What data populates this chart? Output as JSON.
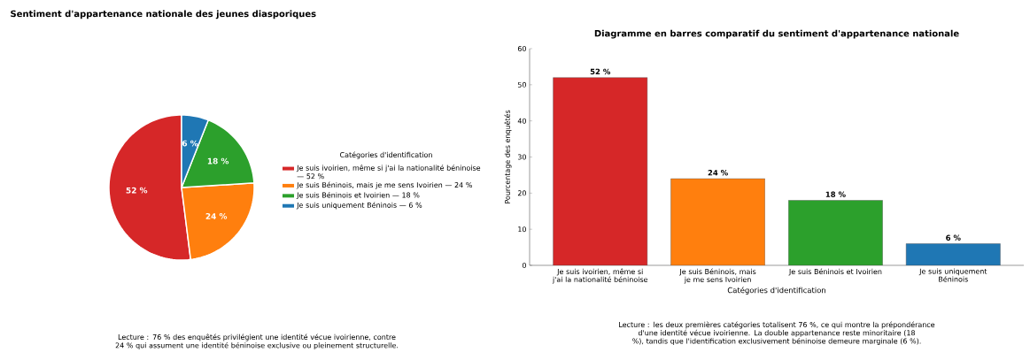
{
  "chart_data": [
    {
      "type": "pie",
      "title": "Sentiment d'appartenance nationale des jeunes diasporiques",
      "legend_title": "Catégories d'identification",
      "legend": "right",
      "categories": [
        "Je suis ivoirien, même si j'ai la nationalité béninoise — 52 %",
        "Je suis Béninois, mais je me sens Ivoirien — 24 %",
        "Je suis Béninois et Ivoirien — 18 %",
        "Je suis uniquement Béninois — 6 %"
      ],
      "values": [
        52,
        24,
        18,
        6
      ],
      "colors": [
        "#d62728",
        "#ff7f0e",
        "#2ca02c",
        "#1f77b4"
      ],
      "value_labels": [
        "52 %",
        "24 %",
        "18 %",
        "6 %"
      ],
      "annotations": [
        "Lecture : 76 % des enquêtés privilégient une identité vécue ivoirienne, contre 24 % qui assument une identité béninoise exclusive ou pleinement structurelle."
      ]
    },
    {
      "type": "bar",
      "title": "Diagramme en barres comparatif du sentiment d'appartenance nationale",
      "xlabel": "Catégories d'identification",
      "ylabel": "Pourcentage des enquêtés",
      "categories": [
        "Je suis ivoirien, même si j'ai la nationalité béninoise",
        "Je suis Béninois, mais je me sens Ivoirien",
        "Je suis Béninois et Ivoirien",
        "Je suis uniquement Béninois"
      ],
      "values": [
        52,
        24,
        18,
        6
      ],
      "colors": [
        "#d62728",
        "#ff7f0e",
        "#2ca02c",
        "#1f77b4"
      ],
      "value_labels": [
        "52 %",
        "24 %",
        "18 %",
        "6 %"
      ],
      "ylim": [
        0,
        60
      ],
      "yticks": [
        0,
        10,
        20,
        30,
        40,
        50,
        60
      ],
      "annotations": [
        "Lecture : les deux premières catégories totalisent 76 %, ce qui montre la prépondérance d'une identité vécue ivoirienne. La double appartenance reste minoritaire (18 %), tandis que l'identification exclusivement béninoise demeure marginale (6 %)."
      ]
    }
  ]
}
